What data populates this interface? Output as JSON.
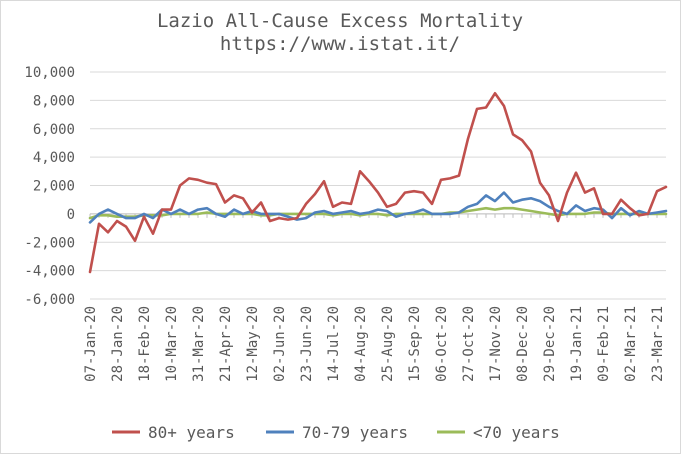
{
  "chart_data": {
    "type": "line",
    "title": "Lazio All-Cause Excess Mortality",
    "subtitle": "https://www.istat.it/",
    "xlabel": "",
    "ylabel": "",
    "ylim": [
      -6000,
      10000
    ],
    "y_ticks": [
      10000,
      8000,
      6000,
      4000,
      2000,
      0,
      -2000,
      -4000,
      -6000
    ],
    "y_tick_labels": [
      "10,000",
      "8,000",
      "6,000",
      "4,000",
      "2,000",
      "0",
      "-2,000",
      "-4,000",
      "-6,000"
    ],
    "x_tick_labels": [
      "07-Jan-20",
      "28-Jan-20",
      "18-Feb-20",
      "10-Mar-20",
      "31-Mar-20",
      "21-Apr-20",
      "12-May-20",
      "02-Jun-20",
      "23-Jun-20",
      "14-Jul-20",
      "04-Aug-20",
      "25-Aug-20",
      "15-Sep-20",
      "06-Oct-20",
      "27-Oct-20",
      "17-Nov-20",
      "08-Dec-20",
      "29-Dec-20",
      "19-Jan-21",
      "09-Feb-21",
      "02-Mar-21",
      "23-Mar-21"
    ],
    "grid": true,
    "legend_position": "bottom",
    "series": [
      {
        "name": "80+ years",
        "color": "#c0504d",
        "values": [
          -4100,
          -700,
          -1300,
          -500,
          -900,
          -1900,
          -200,
          -1400,
          300,
          300,
          2000,
          2500,
          2400,
          2200,
          2100,
          800,
          1300,
          1100,
          100,
          800,
          -500,
          -300,
          -400,
          -300,
          700,
          1400,
          2300,
          500,
          800,
          700,
          3000,
          2300,
          1500,
          500,
          700,
          1500,
          1600,
          1500,
          700,
          2400,
          2500,
          2700,
          5300,
          7400,
          7500,
          8500,
          7600,
          5600,
          5200,
          4400,
          2200,
          1300,
          -500,
          1500,
          2900,
          1500,
          1800,
          0,
          0,
          1000,
          400,
          -100,
          0,
          1600,
          1900
        ]
      },
      {
        "name": "70-79 years",
        "color": "#4f81bd",
        "values": [
          -600,
          0,
          300,
          0,
          -300,
          -300,
          0,
          -300,
          300,
          0,
          300,
          0,
          300,
          400,
          0,
          -200,
          300,
          0,
          200,
          0,
          0,
          0,
          -200,
          -400,
          -300,
          100,
          200,
          0,
          100,
          200,
          0,
          100,
          300,
          200,
          -200,
          0,
          100,
          300,
          0,
          0,
          0,
          100,
          500,
          700,
          1300,
          900,
          1500,
          800,
          1000,
          1100,
          900,
          500,
          200,
          0,
          600,
          200,
          400,
          300,
          -300,
          400,
          -100,
          200,
          0,
          100,
          200
        ]
      },
      {
        "name": "<70 years",
        "color": "#9bbb59",
        "values": [
          -300,
          -100,
          -100,
          -200,
          -200,
          -200,
          -100,
          -100,
          -100,
          0,
          0,
          0,
          0,
          100,
          0,
          0,
          0,
          0,
          0,
          -100,
          -100,
          0,
          0,
          0,
          0,
          0,
          0,
          -100,
          0,
          0,
          -100,
          0,
          0,
          -100,
          0,
          0,
          0,
          0,
          0,
          0,
          100,
          100,
          200,
          300,
          400,
          300,
          400,
          400,
          300,
          200,
          100,
          0,
          -100,
          0,
          0,
          0,
          100,
          100,
          0,
          0,
          0,
          0,
          0,
          0,
          0
        ]
      }
    ]
  }
}
